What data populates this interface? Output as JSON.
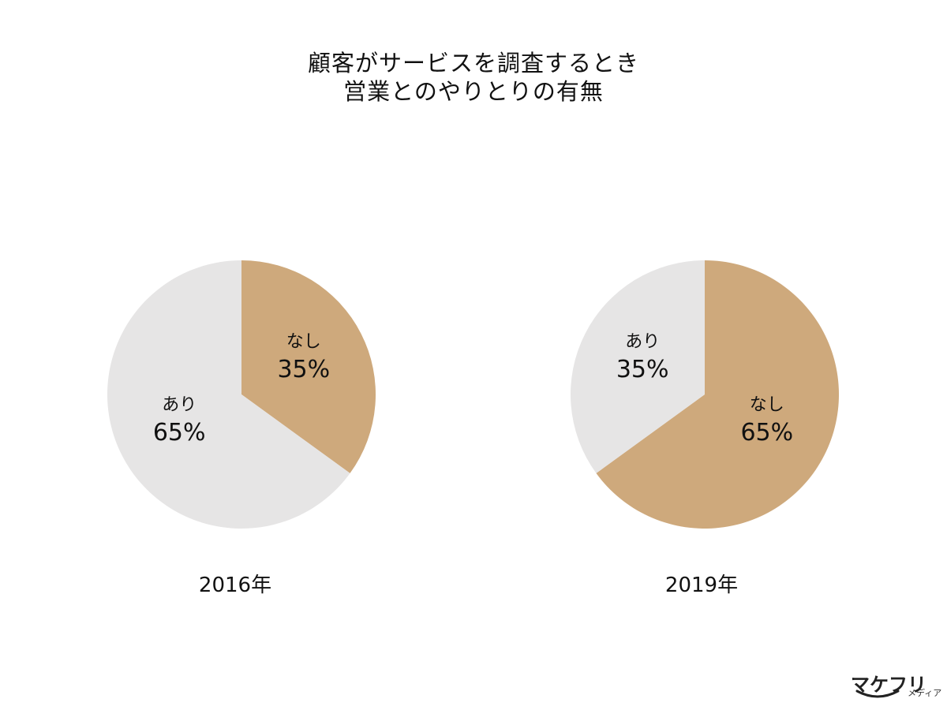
{
  "title": {
    "line1": "顧客がサービスを調査するとき",
    "line2": "営業とのやりとりの有無"
  },
  "colors": {
    "nashi": "#CEA97C",
    "ari": "#E6E5E5",
    "text": "#111111"
  },
  "chart_data": [
    {
      "type": "pie",
      "caption": "2016年",
      "slices": [
        {
          "label": "なし",
          "value": 35,
          "value_label": "35%",
          "color": "#CEA97C"
        },
        {
          "label": "あり",
          "value": 65,
          "value_label": "65%",
          "color": "#E6E5E5"
        }
      ]
    },
    {
      "type": "pie",
      "caption": "2019年",
      "slices": [
        {
          "label": "なし",
          "value": 65,
          "value_label": "65%",
          "color": "#CEA97C"
        },
        {
          "label": "あり",
          "value": 35,
          "value_label": "35%",
          "color": "#E6E5E5"
        }
      ]
    }
  ],
  "logo": {
    "main": "マケフリ",
    "sub": "メディア"
  }
}
